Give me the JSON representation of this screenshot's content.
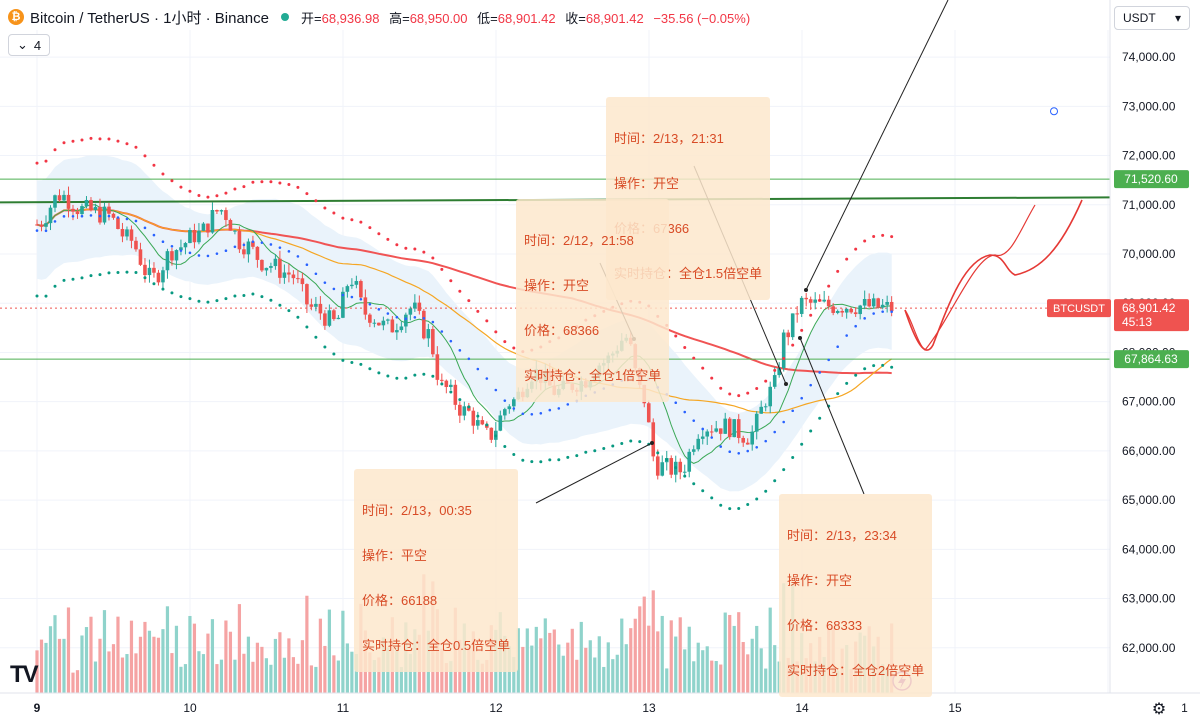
{
  "header": {
    "title": "Bitcoin / TetherUS · 1小时 · Binance",
    "open_label": "开",
    "open": "68,936.98",
    "high_label": "高",
    "high": "68,950.00",
    "low_label": "低",
    "low": "68,901.42",
    "close_label": "收",
    "close": "68,901.42",
    "change": "−35.56 (−0.05%)",
    "coin_glyph": "₿",
    "indicators_count": "4"
  },
  "currency_selector": "USDT",
  "price_tag": {
    "symbol": "BTCUSDT",
    "price": "68,901.42",
    "countdown": "45:13"
  },
  "level_tags": [
    {
      "price": "71,520.60",
      "color": "#4caf50"
    },
    {
      "price": "67,864.63",
      "color": "#4caf50"
    }
  ],
  "annotations": [
    {
      "lines": [
        "时间：2/13，21:31",
        "操作：开空",
        "价格：67366",
        "实时持仓：全仓1.5倍空单"
      ]
    },
    {
      "lines": [
        "时间：2/12，21:58",
        "操作：开空",
        "价格：68366",
        "实时持仓：全仓1倍空单"
      ]
    },
    {
      "lines": [
        "时间：2/13，00:35",
        "操作：平空",
        "价格：66188",
        "实时持仓：全仓0.5倍空单"
      ]
    },
    {
      "lines": [
        "时间：2/13，23:34",
        "操作：开空",
        "价格：68333",
        "实时持仓：全仓2倍空单"
      ]
    }
  ],
  "colors": {
    "up": "#26a69a",
    "down": "#ef5350",
    "vol_up": "#8fd3cb",
    "vol_down": "#f5a3a3",
    "ma_long": "#f05454",
    "ma_mid": "#f5a623",
    "ma_short": "#3aa856",
    "dots_upper": "#f23645",
    "dots_mid": "#2962ff",
    "dots_lower": "#089981",
    "band_fill": "#eaf3fb",
    "level": "#4caf50",
    "trend": "#2e7d32",
    "projection": "#e53935"
  },
  "icons": {
    "logo": "tradingview-logo",
    "gear": "gear-icon",
    "bolt": "lightning-icon"
  },
  "chart_data": {
    "type": "candlestick",
    "symbol": "BTCUSDT",
    "interval": "1h",
    "x_ticks": [
      "9",
      "10",
      "11",
      "12",
      "13",
      "14",
      "15",
      "1"
    ],
    "y_ticks": [
      "74,000.00",
      "73,000.00",
      "72,000.00",
      "71,000.00",
      "70,000.00",
      "69,000.00",
      "68,000.00",
      "67,000.00",
      "66,000.00",
      "65,000.00",
      "64,000.00",
      "63,000.00",
      "62,000.00"
    ],
    "y_range": [
      61300,
      75000
    ],
    "anchors": [
      [
        9.0,
        70600
      ],
      [
        9.15,
        71200
      ],
      [
        9.3,
        70900
      ],
      [
        9.45,
        70800
      ],
      [
        9.6,
        70300
      ],
      [
        9.75,
        69500
      ],
      [
        9.9,
        70100
      ],
      [
        10.05,
        70400
      ],
      [
        10.2,
        70900
      ],
      [
        10.35,
        70200
      ],
      [
        10.5,
        69800
      ],
      [
        10.65,
        69600
      ],
      [
        10.8,
        68900
      ],
      [
        10.95,
        68600
      ],
      [
        11.05,
        69500
      ],
      [
        11.15,
        68800
      ],
      [
        11.3,
        68500
      ],
      [
        11.45,
        68900
      ],
      [
        11.55,
        68400
      ],
      [
        11.65,
        67300
      ],
      [
        11.8,
        66800
      ],
      [
        11.95,
        66300
      ],
      [
        12.1,
        67000
      ],
      [
        12.25,
        67600
      ],
      [
        12.4,
        67200
      ],
      [
        12.55,
        67400
      ],
      [
        12.7,
        67800
      ],
      [
        12.85,
        68300
      ],
      [
        12.95,
        67200
      ],
      [
        13.05,
        65700
      ],
      [
        13.2,
        65600
      ],
      [
        13.35,
        66500
      ],
      [
        13.5,
        66500
      ],
      [
        13.65,
        66300
      ],
      [
        13.8,
        67200
      ],
      [
        13.9,
        68400
      ],
      [
        14.0,
        69000
      ],
      [
        14.15,
        68950
      ],
      [
        14.35,
        68950
      ],
      [
        14.6,
        68900
      ]
    ],
    "volume_range": [
      0,
      1
    ]
  }
}
